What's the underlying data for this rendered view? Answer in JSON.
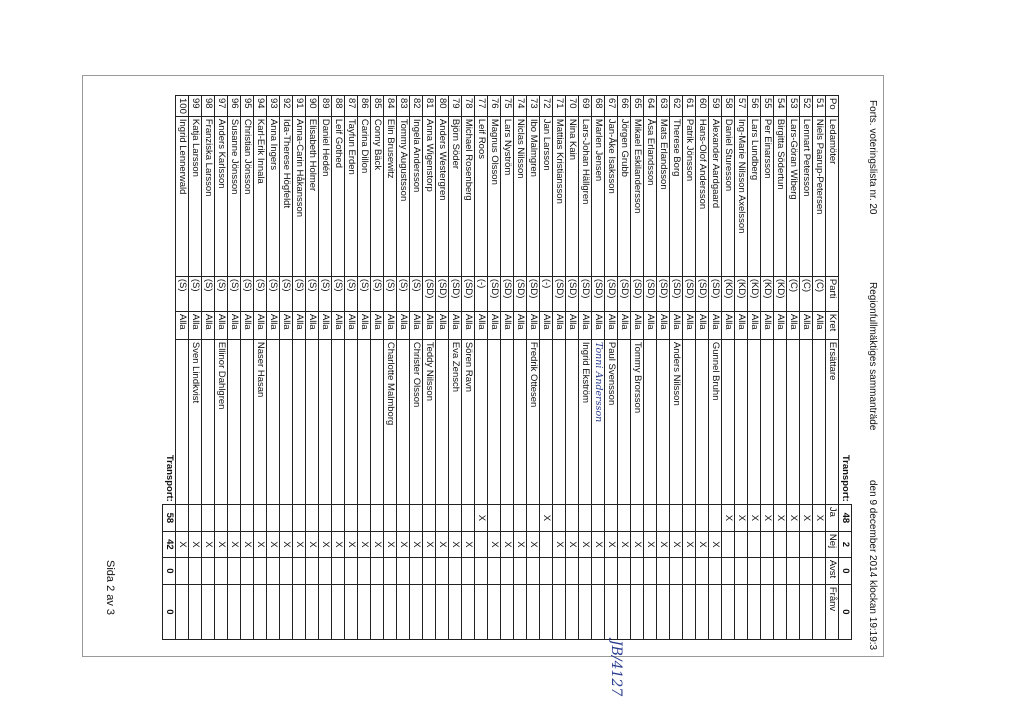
{
  "header": {
    "list_title": "Forts. voteringslista nr. 20",
    "meeting": "Regionfullmäktiges sammanträde",
    "datetime": "den 9 december 2014 klockan 19:19:3"
  },
  "table": {
    "columns": [
      "Po",
      "Ledamöter",
      "Parti",
      "Kret",
      "Ersättare",
      "Ja",
      "Nej",
      "Avst",
      "Frånv"
    ],
    "transport_in": {
      "label": "Transport:",
      "ja": 48,
      "nej": 2,
      "avst": 0,
      "franv": 0
    },
    "rows": [
      [
        51,
        "Niels Paarup-Petersen",
        "(C)",
        "Alla",
        null,
        "X",
        null,
        null,
        null
      ],
      [
        52,
        "Lennart Petersson",
        "(C)",
        "Alla",
        null,
        "X",
        null,
        null,
        null
      ],
      [
        53,
        "Lars-Göran Wiberg",
        "(C)",
        "Alla",
        null,
        "X",
        null,
        null,
        null
      ],
      [
        54,
        "Birgitta Södertun",
        "(KD)",
        "Alla",
        null,
        "X",
        null,
        null,
        null
      ],
      [
        55,
        "Per Einarsson",
        "(KD)",
        "Alla",
        null,
        "X",
        null,
        null,
        null
      ],
      [
        56,
        "Lars Lundberg",
        "(KD)",
        "Alla",
        null,
        "X",
        null,
        null,
        null
      ],
      [
        57,
        "Ing-Marie Nilsson Axelsson",
        "(KD)",
        "Alla",
        null,
        "X",
        null,
        null,
        null
      ],
      [
        58,
        "Daniel Sturesson",
        "(KD)",
        "Alla",
        null,
        "X",
        null,
        null,
        null
      ],
      [
        59,
        "Alexander Aardgaard",
        "(SD)",
        "Alla",
        "Gunnel Bruhn",
        null,
        "X",
        null,
        null
      ],
      [
        60,
        "Hans-Olof Andersson",
        "(SD)",
        "Alla",
        null,
        null,
        "X",
        null,
        null
      ],
      [
        61,
        "Patrik Jönsson",
        "(SD)",
        "Alla",
        null,
        null,
        "X",
        null,
        null
      ],
      [
        62,
        "Therese Borg",
        "(SD)",
        "Alla",
        "Anders Nilsson",
        null,
        "X",
        null,
        null
      ],
      [
        63,
        "Mats Erlandsson",
        "(SD)",
        "Alla",
        null,
        null,
        "X",
        null,
        null
      ],
      [
        64,
        "Åsa Erlandsson",
        "(SD)",
        "Alla",
        null,
        null,
        "X",
        null,
        null
      ],
      [
        65,
        "Mikael Eskilandersson",
        "(SD)",
        "Alla",
        "Tommy Brorsson",
        null,
        "X",
        null,
        null
      ],
      [
        66,
        "Jörgen Grubb",
        "(SD)",
        "Alla",
        null,
        null,
        "X",
        null,
        null
      ],
      [
        67,
        "Jan-Åke Isaksson",
        "(SD)",
        "Alla",
        "Paul Svensson",
        null,
        "X",
        null,
        null
      ],
      [
        68,
        "Marlen Jensen",
        "(SD)",
        "Alla",
        "Tonni Andersson",
        null,
        "X",
        null,
        null
      ],
      [
        69,
        "Lars-Johan Hällgren",
        "(SD)",
        "Alla",
        "Ingrid Ekström",
        null,
        "X",
        null,
        null
      ],
      [
        70,
        "Nina Kain",
        "(SD)",
        "Alla",
        null,
        null,
        "X",
        null,
        null
      ],
      [
        71,
        "Mattias Kristiansson",
        "(SD)",
        "Alla",
        null,
        null,
        "X",
        null,
        null
      ],
      [
        72,
        "Jan Larsson",
        "(-)",
        "Alla",
        null,
        "X",
        null,
        null,
        null
      ],
      [
        73,
        "Ibo Malmgren",
        "(SD)",
        "Alla",
        "Fredrik Ottesen",
        null,
        "X",
        null,
        null
      ],
      [
        74,
        "Niclas Nilsson",
        "(SD)",
        "Alla",
        null,
        null,
        "X",
        null,
        null
      ],
      [
        75,
        "Lars Nyström",
        "(SD)",
        "Alla",
        null,
        null,
        "X",
        null,
        null
      ],
      [
        76,
        "Magnus Olsson",
        "(SD)",
        "Alla",
        null,
        null,
        "X",
        null,
        null
      ],
      [
        77,
        "Leif Roos",
        "(-)",
        "Alla",
        null,
        "X",
        null,
        null,
        null
      ],
      [
        78,
        "Michael Rosenberg",
        "(SD)",
        "Alla",
        "Sören Ravn",
        null,
        "X",
        null,
        null
      ],
      [
        79,
        "Björn Söder",
        "(SD)",
        "Alla",
        "Eva Zensch",
        null,
        "X",
        null,
        null
      ],
      [
        80,
        "Anders Westergren",
        "(SD)",
        "Alla",
        null,
        null,
        "X",
        null,
        null
      ],
      [
        81,
        "Anna Wigenstorp",
        "(SD)",
        "Alla",
        "Teddy Nilsson",
        null,
        "X",
        null,
        null
      ],
      [
        82,
        "Ingela Andersson",
        "(S)",
        "Alla",
        "Christer Olsson",
        null,
        "X",
        null,
        null
      ],
      [
        83,
        "Tommy Augustsson",
        "(S)",
        "Alla",
        null,
        null,
        "X",
        null,
        null
      ],
      [
        84,
        "Elin Brusewitz",
        "(S)",
        "Alla",
        "Charlotte Malmborg",
        null,
        "X",
        null,
        null
      ],
      [
        85,
        "Conny Bäck",
        "(S)",
        "Alla",
        null,
        null,
        "X",
        null,
        null
      ],
      [
        86,
        "Carina Dillon",
        "(S)",
        "Alla",
        null,
        null,
        "X",
        null,
        null
      ],
      [
        87,
        "Tayfun Erden",
        "(S)",
        "Alla",
        null,
        null,
        "X",
        null,
        null
      ],
      [
        88,
        "Leif Gothed",
        "(S)",
        "Alla",
        null,
        null,
        "X",
        null,
        null
      ],
      [
        89,
        "Daniel Hedén",
        "(S)",
        "Alla",
        null,
        null,
        "X",
        null,
        null
      ],
      [
        90,
        "Elisabeth Holmer",
        "(S)",
        "Alla",
        null,
        null,
        "X",
        null,
        null
      ],
      [
        91,
        "Anna-Carin Håkansson",
        "(S)",
        "Alla",
        null,
        null,
        "X",
        null,
        null
      ],
      [
        92,
        "Ida-Therese Högfeldt",
        "(S)",
        "Alla",
        null,
        null,
        "X",
        null,
        null
      ],
      [
        93,
        "Anna Ingers",
        "(S)",
        "Alla",
        null,
        null,
        "X",
        null,
        null
      ],
      [
        94,
        "Karl-Erik Innala",
        "(S)",
        "Alla",
        "Naser Hasan",
        null,
        "X",
        null,
        null
      ],
      [
        95,
        "Christian Jönsson",
        "(S)",
        "Alla",
        null,
        null,
        "X",
        null,
        null
      ],
      [
        96,
        "Susanne Jönsson",
        "(S)",
        "Alla",
        null,
        null,
        "X",
        null,
        null
      ],
      [
        97,
        "Anders Karlsson",
        "(S)",
        "Alla",
        "Ellinor Dahlgren",
        null,
        "X",
        null,
        null
      ],
      [
        98,
        "Franziska Larsson",
        "(S)",
        "Alla",
        null,
        null,
        "X",
        null,
        null
      ],
      [
        99,
        "Katja Larsson",
        "(S)",
        "Alla",
        "Sven Lindkvist",
        null,
        "X",
        null,
        null
      ],
      [
        100,
        "Ingrid Lennerwald",
        "(S)",
        "Alla",
        null,
        null,
        "X",
        null,
        null
      ]
    ],
    "transport_out": {
      "label": "Transport:",
      "ja": 58,
      "nej": 42,
      "avst": 0,
      "franv": 0
    }
  },
  "margin_note": "JB/4127",
  "footer": {
    "page": "Sida 2 av 3"
  }
}
